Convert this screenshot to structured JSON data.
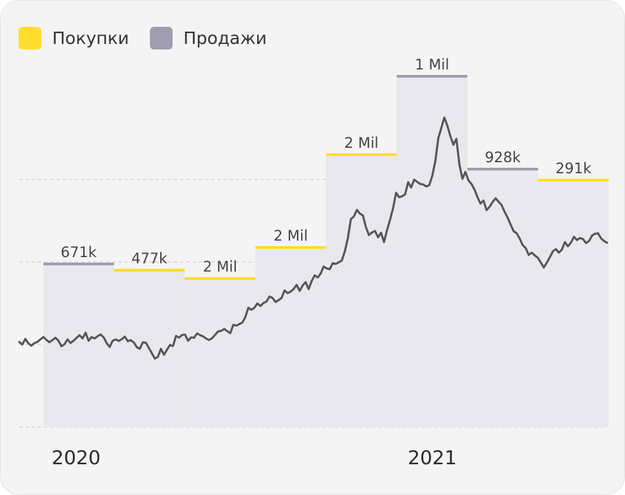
{
  "legend": {
    "buys_label": "Покупки",
    "sells_label": "Продажи"
  },
  "colors": {
    "buys": "#ffdd2d",
    "sells": "#9f9eb0",
    "band": "#e9e8ee",
    "price_line": "#555555",
    "grid": "#cfcfcf"
  },
  "chart_data": {
    "type": "line",
    "title": "",
    "xlabel": "",
    "ylabel": "",
    "x_tick_labels": [
      "2020",
      "2021"
    ],
    "grid": true,
    "legend_position": "top-left",
    "series": [
      {
        "name": "",
        "description": "price line",
        "values": [
          1.0,
          0.9,
          1.12,
          0.95,
          0.85,
          0.95,
          1.0,
          1.1,
          1.2,
          1.08,
          0.99,
          1.07,
          1.17,
          1.05,
          0.83,
          0.91,
          1.1,
          0.96,
          1.05,
          1.16,
          1.27,
          1.14,
          1.37,
          1.05,
          1.19,
          1.14,
          1.23,
          1.3,
          1.18,
          0.95,
          0.8,
          1.05,
          1.1,
          1.04,
          1.11,
          1.21,
          1.03,
          1.07,
          0.98,
          0.79,
          0.73,
          0.99,
          0.97,
          0.76,
          0.55,
          0.34,
          0.41,
          0.73,
          0.49,
          0.69,
          0.88,
          0.84,
          1.24,
          1.17,
          1.28,
          1.29,
          1.05,
          1.18,
          1.17,
          1.34,
          1.27,
          1.22,
          1.13,
          1.08,
          1.15,
          1.29,
          1.42,
          1.44,
          1.52,
          1.43,
          1.35,
          1.68,
          1.65,
          1.71,
          1.77,
          1.99,
          2.36,
          2.28,
          2.36,
          2.53,
          2.43,
          2.55,
          2.6,
          2.81,
          2.75,
          2.59,
          2.66,
          2.75,
          3.05,
          2.94,
          3.0,
          3.1,
          3.27,
          3.03,
          3.24,
          3.38,
          3.1,
          3.42,
          3.65,
          3.56,
          3.72,
          4.0,
          3.92,
          3.89,
          4.13,
          4.1,
          4.17,
          4.24,
          4.6,
          5.12,
          5.88,
          5.99,
          6.25,
          6.1,
          6.03,
          5.56,
          5.25,
          5.35,
          5.41,
          5.16,
          5.34,
          4.97,
          5.44,
          5.86,
          6.32,
          6.93,
          6.75,
          6.79,
          6.87,
          7.35,
          7.14,
          7.45,
          7.36,
          7.28,
          7.26,
          7.18,
          7.23,
          7.6,
          8.18,
          9.1,
          9.5,
          9.92,
          9.6,
          9.18,
          8.84,
          9.07,
          8.05,
          7.48,
          7.76,
          7.42,
          7.28,
          7.06,
          6.75,
          6.5,
          6.62,
          6.24,
          6.37,
          6.56,
          6.71,
          6.57,
          6.44,
          6.17,
          5.94,
          5.66,
          5.4,
          5.32,
          5.11,
          4.85,
          4.73,
          4.46,
          4.55,
          4.44,
          4.35,
          4.16,
          3.96,
          4.15,
          4.37,
          4.6,
          4.69,
          4.55,
          4.67,
          4.97,
          4.8,
          4.95,
          5.18,
          5.05,
          5.13,
          5.09,
          4.93,
          5.01,
          5.23,
          5.3,
          5.32,
          5.12,
          5.01,
          4.94
        ]
      }
    ],
    "periods": [
      {
        "type": "sells",
        "label": "671k"
      },
      {
        "type": "buys",
        "label": "477k"
      },
      {
        "type": "buys",
        "label": "2 Mil"
      },
      {
        "type": "buys",
        "label": "2 Mil"
      },
      {
        "type": "buys",
        "label": "2 Mil"
      },
      {
        "type": "sells",
        "label": "1 Mil"
      },
      {
        "type": "sells",
        "label": "928k"
      },
      {
        "type": "buys",
        "label": "291k"
      }
    ]
  }
}
